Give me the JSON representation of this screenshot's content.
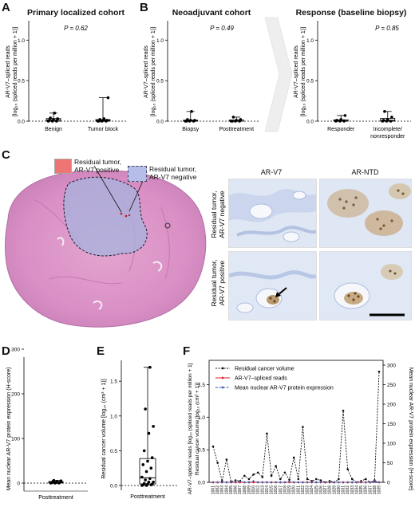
{
  "panels": {
    "A": {
      "letter": "A",
      "title": "Primary localized cohort",
      "pvalue": "P = 0.62",
      "ylabel_line1": "AR-V7–spliced reads",
      "ylabel_line2": "[log₁₀ (spliced reads per million + 1)]",
      "yticks": [
        "0.0",
        "0.5",
        "1.0"
      ],
      "categories": [
        "Benign",
        "Tumor block"
      ]
    },
    "B": {
      "letter": "B",
      "title_left": "Neoadjuvant cohort",
      "title_right": "Response (baseline biopsy)",
      "pvalue_left": "P = 0.49",
      "pvalue_right": "P = 0.85",
      "ylabel_line1": "AR-V7–spliced reads",
      "ylabel_line2": "[log₁₀ (spliced reads per million + 1)]",
      "yticks": [
        "0.0",
        "0.5",
        "1.0"
      ],
      "categories_left": [
        "Biopsy",
        "Posttreatment"
      ],
      "categories_right": [
        "Responder",
        "Incomplete/",
        "nonresponder"
      ]
    },
    "C": {
      "letter": "C",
      "legend_pos_line1": "Residual tumor,",
      "legend_pos_line2": "AR-V7 positive",
      "legend_neg_line1": "Residual tumor,",
      "legend_neg_line2": "AR-V7 negative",
      "col1": "AR-V7",
      "col2": "AR-NTD",
      "row1_line1": "Residual tumor,",
      "row1_line2": "AR-V7 negative",
      "row2_line1": "Residual tumor,",
      "row2_line2": "AR-V7 positive"
    },
    "D": {
      "letter": "D",
      "ylabel": "Mean nuclear AR-V7 protein expression (H-score)",
      "yticks": [
        "0",
        "100",
        "200",
        "300"
      ],
      "category": "Posttreatment"
    },
    "E": {
      "letter": "E",
      "ylabel": "Residual cancer volume [log₁₀ (cm³ + 1)]",
      "yticks": [
        "0.0",
        "0.5",
        "1.0",
        "1.5"
      ],
      "category": "Posttreatment"
    },
    "F": {
      "letter": "F",
      "ylabel_left_line1": "AR-V7–spliced reads [log₁₀ (spliced reads per million + 1]",
      "ylabel_left_line2": "Residual cancer volume [log₁₀ (cm³ + 1)]",
      "ylabel_right": "Mean nuclear AR-V7 protein expression (H-score)",
      "yticks_left": [
        "0.0",
        "0.5",
        "1.0",
        "1.5"
      ],
      "yticks_right": [
        "0",
        "50",
        "100",
        "150",
        "200",
        "250",
        "300"
      ],
      "legend": [
        "Residual cancer volume",
        "AR-V7–spliced reads",
        "Mean nuclear AR-V7 protein expression"
      ]
    }
  },
  "chart_data": [
    {
      "type": "scatter",
      "panel": "A",
      "title": "Primary localized cohort",
      "ylim": [
        0,
        1.2
      ],
      "categories": [
        "Benign",
        "Tumor block"
      ],
      "series": [
        {
          "values": [
            0.0,
            0.0,
            0.0,
            0.01,
            0.02,
            0.03,
            0.04,
            0.1
          ]
        },
        {
          "values": [
            0.0,
            0.0,
            0.0,
            0.0,
            0.01,
            0.01,
            0.02,
            0.03,
            0.29
          ]
        }
      ]
    },
    {
      "type": "scatter",
      "panel": "B-left",
      "title": "Neoadjuvant cohort",
      "ylim": [
        0,
        1.2
      ],
      "categories": [
        "Biopsy",
        "Posttreatment"
      ],
      "series": [
        {
          "values": [
            0.0,
            0.0,
            0.0,
            0.0,
            0.01,
            0.01,
            0.02,
            0.12
          ]
        },
        {
          "values": [
            0.0,
            0.0,
            0.0,
            0.0,
            0.01,
            0.02,
            0.05
          ]
        }
      ]
    },
    {
      "type": "scatter",
      "panel": "B-right",
      "title": "Response (baseline biopsy)",
      "ylim": [
        0,
        1.2
      ],
      "categories": [
        "Responder",
        "Incomplete/nonresponder"
      ],
      "series": [
        {
          "values": [
            0.0,
            0.0,
            0.0,
            0.01,
            0.02,
            0.07
          ]
        },
        {
          "values": [
            0.0,
            0.0,
            0.0,
            0.01,
            0.02,
            0.05,
            0.12
          ]
        }
      ]
    },
    {
      "type": "scatter",
      "panel": "D",
      "ylim": [
        0,
        300
      ],
      "categories": [
        "Posttreatment"
      ],
      "values": [
        0,
        0,
        0,
        1,
        1,
        2,
        3,
        4,
        5,
        6
      ]
    },
    {
      "type": "scatter",
      "panel": "E",
      "ylim": [
        0,
        1.8
      ],
      "categories": [
        "Posttreatment"
      ],
      "values": [
        0.0,
        0.0,
        0.01,
        0.01,
        0.02,
        0.02,
        0.03,
        0.05,
        0.05,
        0.08,
        0.1,
        0.12,
        0.2,
        0.25,
        0.3,
        0.35,
        0.4,
        0.5,
        0.75,
        0.85,
        1.1,
        1.7
      ]
    },
    {
      "type": "line",
      "panel": "F",
      "x": [
        "1001",
        "1002",
        "1003",
        "1004",
        "1005",
        "1006",
        "1007",
        "1008",
        "1009",
        "1010",
        "1012",
        "1013",
        "1014",
        "1015",
        "1016",
        "1017",
        "1018",
        "1019",
        "1020",
        "1021",
        "1022",
        "1023",
        "1024",
        "1025",
        "1026",
        "1027",
        "1028",
        "1029",
        "1030",
        "1031",
        "1032",
        "1033",
        "1034",
        "1035",
        "1036",
        "1037",
        "1038",
        "1039"
      ],
      "ylim_left": [
        0,
        1.8
      ],
      "ylim_right": [
        0,
        300
      ],
      "series": [
        {
          "name": "Residual cancer volume",
          "values": [
            0.55,
            0.3,
            0.02,
            0.35,
            0.01,
            0.03,
            0.02,
            0.1,
            0.05,
            0.12,
            0.15,
            0.08,
            0.75,
            0.1,
            0.25,
            0.05,
            0.15,
            0.04,
            0.38,
            0.05,
            0.85,
            0.05,
            0.02,
            0.05,
            0.03,
            0.0,
            0.02,
            0.0,
            0.05,
            1.1,
            0.2,
            0.05,
            0.0,
            0.02,
            0.05,
            0.0,
            0.03,
            1.7
          ]
        },
        {
          "name": "AR-V7–spliced reads",
          "values": [
            0,
            0,
            0,
            0,
            0,
            0,
            0,
            0,
            0,
            0,
            0,
            0,
            0,
            0,
            0,
            0,
            0,
            0,
            0,
            0,
            0,
            0,
            0,
            0,
            0,
            0,
            0,
            0,
            0,
            0,
            0,
            0,
            0,
            0,
            0,
            0,
            0.02,
            0
          ]
        },
        {
          "name": "Mean nuclear AR-V7 protein expression",
          "values": [
            0,
            0,
            0,
            0,
            0,
            1,
            2,
            0,
            0,
            3,
            0,
            0,
            0,
            0,
            0,
            0,
            0,
            2,
            0,
            0,
            0,
            0,
            0,
            0,
            0,
            0,
            0,
            0,
            0,
            0,
            0,
            0,
            0,
            0,
            0,
            0,
            3,
            0
          ]
        }
      ]
    }
  ],
  "colors": {
    "residual_volume": "#111111",
    "spliced_reads": "#e0202e",
    "protein": "#3a5ba8",
    "legend_positive": "#ef7474",
    "legend_negative": "#b5bde8",
    "he_pink": "#d98fc4",
    "ihc_blue": "#c9d6ee"
  }
}
